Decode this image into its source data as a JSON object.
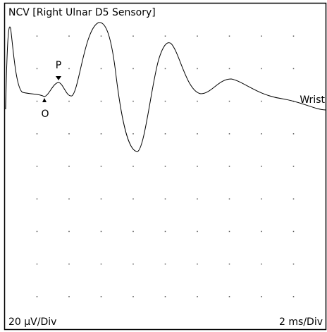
{
  "header": {
    "title": "NCV [Right Ulnar D5 Sensory]"
  },
  "markers": {
    "peak": "P",
    "onset": "O"
  },
  "trace": {
    "label": "Wrist"
  },
  "scale": {
    "vertical": "20 µV/Div",
    "horizontal": "2 ms/Div"
  }
}
